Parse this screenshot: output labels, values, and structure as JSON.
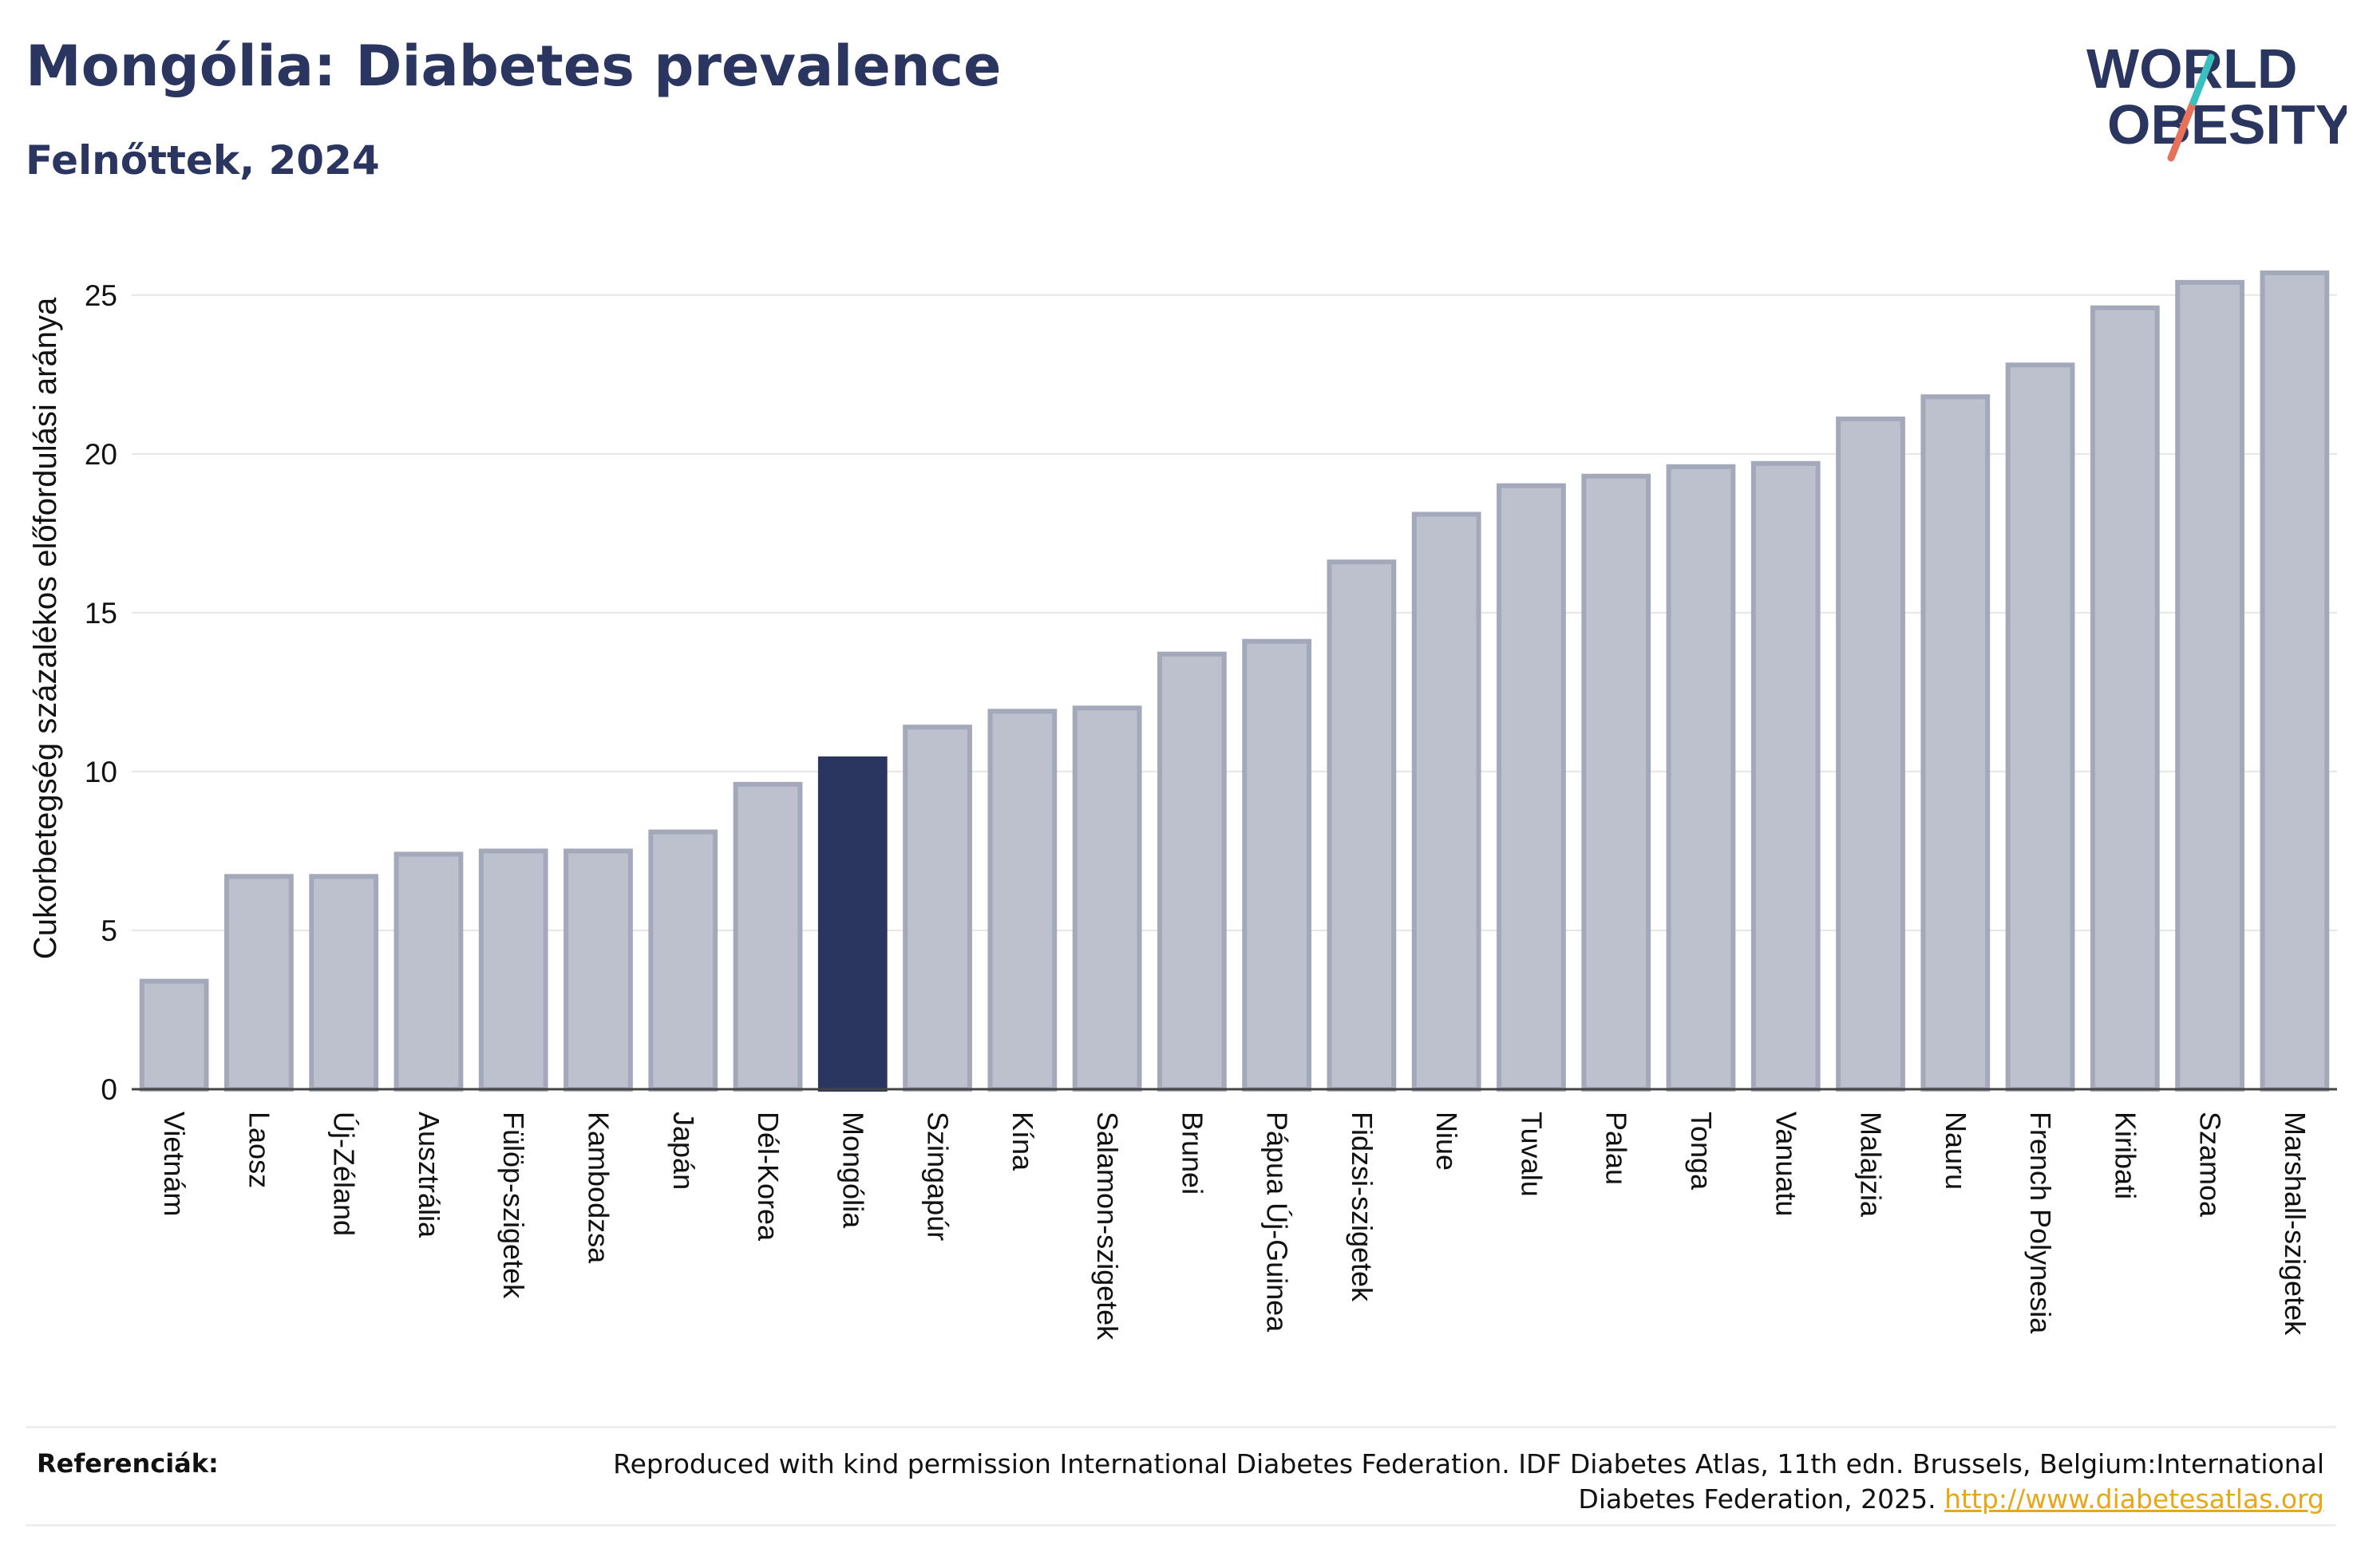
{
  "title": "Mongólia: Diabetes prevalence",
  "subtitle": "Felnőttek, 2024",
  "logo": {
    "line1": "WORLD",
    "line2": "OBESITY"
  },
  "references": {
    "label": "Referenciák:",
    "text": "Reproduced with kind permission International Diabetes Federation. IDF Diabetes Atlas, 11th edn. Brussels, Belgium:International Diabetes Federation, 2025.",
    "link": "http://www.diabetesatlas.org"
  },
  "colors": {
    "bar_fill": "#bdc0cd",
    "bar_stroke": "#a3a8bb",
    "highlight": "#2a3560",
    "text": "#2a3560",
    "link": "#e6a817"
  },
  "chart_data": {
    "type": "bar",
    "title": "Mongólia: Diabetes prevalence",
    "subtitle": "Felnőttek, 2024",
    "ylabel": "Cukorbetegség százalékos előfordulási aránya",
    "xlabel": "",
    "ylim": [
      0,
      26
    ],
    "yticks": [
      0,
      5,
      10,
      15,
      20,
      25
    ],
    "grid": true,
    "highlight": "Mongólia",
    "categories": [
      "Vietnám",
      "Laosz",
      "Új-Zéland",
      "Ausztrália",
      "Fülöp-szigetek",
      "Kambodzsa",
      "Japán",
      "Dél-Korea",
      "Mongólia",
      "Szingapúr",
      "Kína",
      "Salamon-szigetek",
      "Brunei",
      "Pápua Új-Guinea",
      "Fidzsi-szigetek",
      "Niue",
      "Tuvalu",
      "Palau",
      "Tonga",
      "Vanuatu",
      "Malajzia",
      "Nauru",
      "French Polynesia",
      "Kiribati",
      "Szamoa",
      "Marshall-szigetek"
    ],
    "values": [
      3.4,
      6.7,
      6.7,
      7.4,
      7.5,
      7.5,
      8.1,
      9.6,
      10.4,
      11.4,
      11.9,
      12.0,
      13.7,
      14.1,
      16.6,
      18.1,
      19.0,
      19.3,
      19.6,
      19.7,
      21.1,
      21.8,
      22.8,
      24.6,
      25.4,
      25.7
    ]
  }
}
